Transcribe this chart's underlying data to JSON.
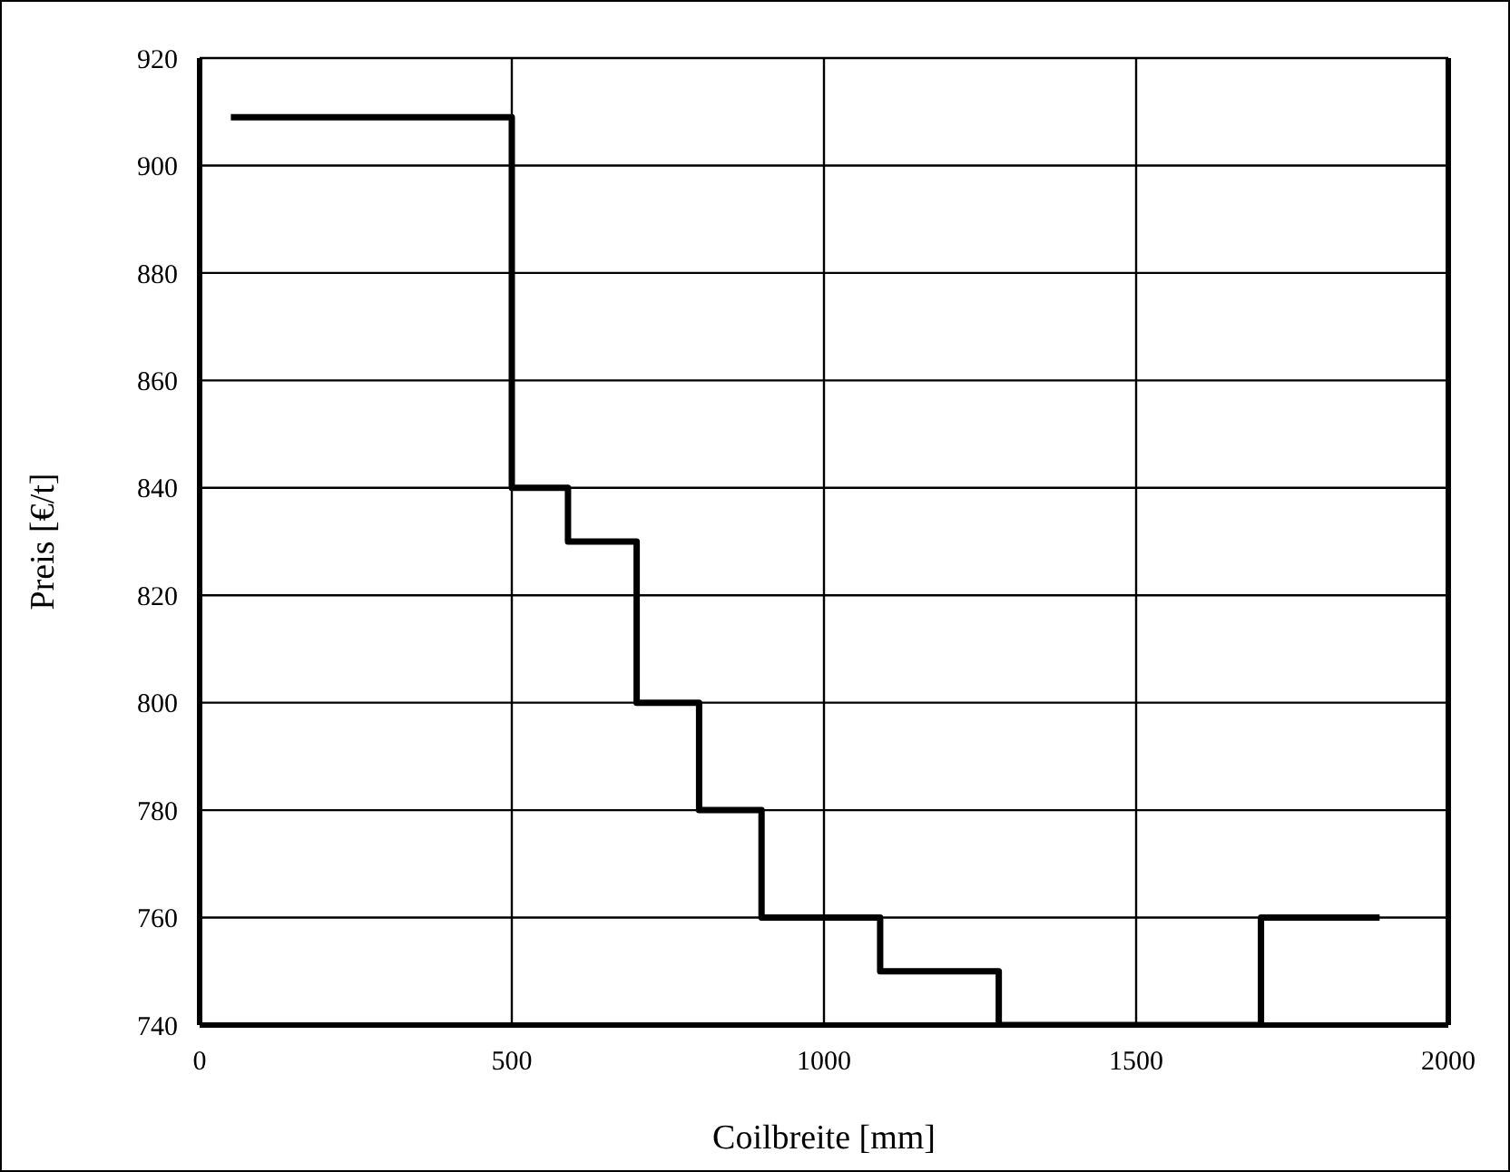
{
  "chart_data": {
    "type": "step",
    "xlabel": "Coilbreite [mm]",
    "ylabel": "Preis [€/t]",
    "x": [
      50,
      500,
      590,
      700,
      800,
      900,
      1090,
      1280,
      1700,
      1890
    ],
    "series": [
      {
        "color": "#000000",
        "values": [
          909,
          840,
          830,
          800,
          780,
          760,
          750,
          740,
          760,
          760
        ]
      }
    ],
    "xlim": [
      0,
      2000
    ],
    "xticks": [
      0,
      500,
      1000,
      1500,
      2000
    ],
    "ylim": [
      740,
      920
    ],
    "yticks": [
      740,
      760,
      780,
      800,
      820,
      840,
      860,
      880,
      900,
      920
    ],
    "grid": true,
    "marker": "none",
    "line_style": "solid"
  }
}
